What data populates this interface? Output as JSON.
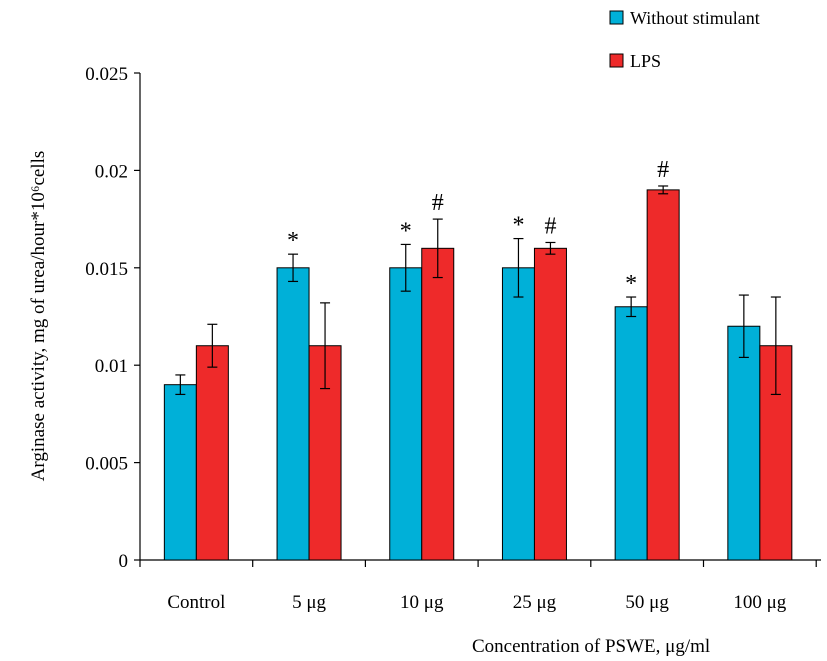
{
  "chart_data": {
    "type": "bar",
    "title": "",
    "xlabel": "Concentration of PSWE, μg/ml",
    "ylabel": "Arginase activity, mg of urea/hour*10⁶cells",
    "ylim": [
      0,
      0.025
    ],
    "yticks": [
      "0",
      "0.005",
      "0.01",
      "0.015",
      "0.02",
      "0.025"
    ],
    "categories": [
      "Control",
      "5 μg",
      "10 μg",
      "25 μg",
      "50 μg",
      "100 μg"
    ],
    "legend_position": "top-right",
    "grid": false,
    "series": [
      {
        "name": "Without stimulant",
        "color": "#00b0d8",
        "values": [
          0.009,
          0.015,
          0.015,
          0.015,
          0.013,
          0.012
        ],
        "errors": [
          0.0005,
          0.0007,
          0.0012,
          0.0015,
          0.0005,
          0.0016
        ],
        "annotations": [
          "",
          "*",
          "*",
          "*",
          "*",
          ""
        ]
      },
      {
        "name": "LPS",
        "color": "#ee2a2a",
        "values": [
          0.011,
          0.011,
          0.016,
          0.016,
          0.019,
          0.011
        ],
        "errors": [
          0.0011,
          0.0022,
          0.0015,
          0.0003,
          0.0002,
          0.0025
        ],
        "annotations": [
          "",
          "",
          "#",
          "#",
          "#",
          ""
        ]
      }
    ]
  }
}
